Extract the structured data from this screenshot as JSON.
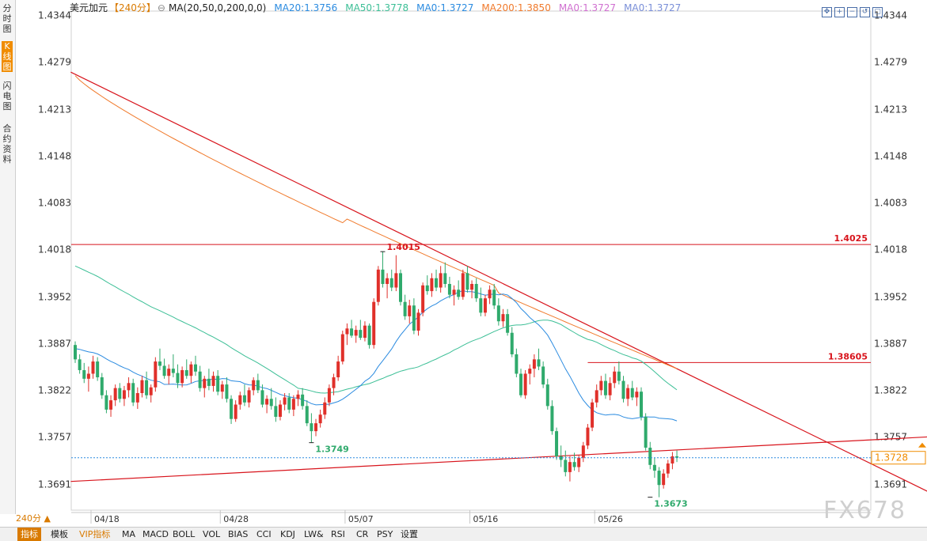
{
  "left_tabs": [
    "分时图",
    "K线图",
    "闪电图",
    "合约资料"
  ],
  "legend": {
    "symbol": "美元加元",
    "period": "【240分】",
    "ma_params": "MA(20,50,0,200,0,0)",
    "ma20": "MA20:1.3756",
    "ma50": "MA50:1.3778",
    "ma0a": "MA0:1.3727",
    "ma200": "MA200:1.3850",
    "ma0b": "MA0:1.3727",
    "ma0c": "MA0:1.3727"
  },
  "colors": {
    "up": "#e0302a",
    "down": "#2faa6c",
    "ma20": "#2b8be0",
    "ma50": "#3cbf96",
    "ma200": "#f07a2c",
    "trend": "#d8141c",
    "current_price": "#2b8be0"
  },
  "chart_data": {
    "type": "candlestick",
    "symbol": "USDCAD",
    "timeframe": "240分",
    "ylim": [
      1.3655,
      1.435
    ],
    "y_ticks": [
      "1.4344",
      "1.4279",
      "1.4213",
      "1.4148",
      "1.4083",
      "1.4018",
      "1.3952",
      "1.3887",
      "1.3822",
      "1.3757",
      "1.3691"
    ],
    "x_ticks": [
      {
        "label": "04/18",
        "i": 0
      },
      {
        "label": "04/28",
        "i": 29
      },
      {
        "label": "05/07",
        "i": 57
      },
      {
        "label": "05/16",
        "i": 85
      },
      {
        "label": "05/26",
        "i": 113
      }
    ],
    "candles": [
      [
        1.3885,
        1.389,
        1.386,
        1.3865
      ],
      [
        1.3865,
        1.3872,
        1.3845,
        1.385
      ],
      [
        1.385,
        1.386,
        1.3832,
        1.3838
      ],
      [
        1.3838,
        1.3855,
        1.382,
        1.3845
      ],
      [
        1.3845,
        1.387,
        1.3838,
        1.3862
      ],
      [
        1.3862,
        1.3868,
        1.3835,
        1.384
      ],
      [
        1.384,
        1.3846,
        1.381,
        1.3815
      ],
      [
        1.3815,
        1.3822,
        1.379,
        1.3795
      ],
      [
        1.3795,
        1.3815,
        1.3785,
        1.3808
      ],
      [
        1.3808,
        1.383,
        1.38,
        1.3825
      ],
      [
        1.3825,
        1.3832,
        1.3805,
        1.381
      ],
      [
        1.381,
        1.3828,
        1.38,
        1.3822
      ],
      [
        1.3822,
        1.384,
        1.3812,
        1.3832
      ],
      [
        1.3832,
        1.3838,
        1.38,
        1.3805
      ],
      [
        1.3805,
        1.3826,
        1.3796,
        1.3818
      ],
      [
        1.3818,
        1.3842,
        1.3812,
        1.3836
      ],
      [
        1.3836,
        1.3848,
        1.381,
        1.3815
      ],
      [
        1.3815,
        1.383,
        1.3805,
        1.3826
      ],
      [
        1.3826,
        1.3868,
        1.382,
        1.3862
      ],
      [
        1.3862,
        1.388,
        1.385,
        1.3856
      ],
      [
        1.3856,
        1.3866,
        1.3838,
        1.3842
      ],
      [
        1.3842,
        1.3858,
        1.383,
        1.3852
      ],
      [
        1.3852,
        1.3872,
        1.384,
        1.3846
      ],
      [
        1.3846,
        1.3858,
        1.3825,
        1.3832
      ],
      [
        1.3832,
        1.3855,
        1.3826,
        1.385
      ],
      [
        1.385,
        1.3865,
        1.3838,
        1.3842
      ],
      [
        1.3842,
        1.3862,
        1.3832,
        1.3858
      ],
      [
        1.3858,
        1.387,
        1.3842,
        1.3848
      ],
      [
        1.3848,
        1.3856,
        1.382,
        1.3825
      ],
      [
        1.3825,
        1.3842,
        1.3812,
        1.3838
      ],
      [
        1.3838,
        1.3852,
        1.3822,
        1.3828
      ],
      [
        1.3828,
        1.3848,
        1.382,
        1.3842
      ],
      [
        1.3842,
        1.385,
        1.3815,
        1.382
      ],
      [
        1.382,
        1.3835,
        1.381,
        1.383
      ],
      [
        1.383,
        1.384,
        1.3805,
        1.381
      ],
      [
        1.381,
        1.3815,
        1.3775,
        1.3782
      ],
      [
        1.3782,
        1.3808,
        1.3778,
        1.3802
      ],
      [
        1.3802,
        1.382,
        1.3795,
        1.3815
      ],
      [
        1.3815,
        1.383,
        1.38,
        1.3805
      ],
      [
        1.3805,
        1.3826,
        1.3798,
        1.3822
      ],
      [
        1.3822,
        1.384,
        1.3815,
        1.3836
      ],
      [
        1.3836,
        1.3845,
        1.3818,
        1.3822
      ],
      [
        1.3822,
        1.383,
        1.3798,
        1.3802
      ],
      [
        1.3802,
        1.3815,
        1.379,
        1.381
      ],
      [
        1.381,
        1.3825,
        1.3795,
        1.38
      ],
      [
        1.38,
        1.3812,
        1.3778,
        1.3785
      ],
      [
        1.3785,
        1.3808,
        1.378,
        1.3802
      ],
      [
        1.3802,
        1.3818,
        1.3794,
        1.3812
      ],
      [
        1.3812,
        1.3818,
        1.379,
        1.3795
      ],
      [
        1.3795,
        1.3815,
        1.3786,
        1.381
      ],
      [
        1.381,
        1.3822,
        1.38,
        1.3816
      ],
      [
        1.3816,
        1.3825,
        1.3795,
        1.38
      ],
      [
        1.38,
        1.3808,
        1.3772,
        1.3776
      ],
      [
        1.3776,
        1.379,
        1.3749,
        1.3765
      ],
      [
        1.3765,
        1.3782,
        1.3758,
        1.3776
      ],
      [
        1.3776,
        1.3795,
        1.377,
        1.3788
      ],
      [
        1.3788,
        1.3812,
        1.3782,
        1.3805
      ],
      [
        1.3805,
        1.383,
        1.38,
        1.3825
      ],
      [
        1.3825,
        1.3845,
        1.3815,
        1.384
      ],
      [
        1.384,
        1.387,
        1.3835,
        1.3862
      ],
      [
        1.3862,
        1.3905,
        1.3858,
        1.39
      ],
      [
        1.39,
        1.3915,
        1.3885,
        1.3908
      ],
      [
        1.3908,
        1.392,
        1.3895,
        1.3898
      ],
      [
        1.3898,
        1.3912,
        1.3888,
        1.3906
      ],
      [
        1.3906,
        1.392,
        1.3892,
        1.3895
      ],
      [
        1.3895,
        1.3918,
        1.389,
        1.3912
      ],
      [
        1.3912,
        1.3915,
        1.388,
        1.3885
      ],
      [
        1.3885,
        1.395,
        1.388,
        1.3945
      ],
      [
        1.3945,
        1.3995,
        1.394,
        1.399
      ],
      [
        1.399,
        1.4015,
        1.3965,
        1.397
      ],
      [
        1.397,
        1.3985,
        1.395,
        1.3978
      ],
      [
        1.3978,
        1.399,
        1.396,
        1.3965
      ],
      [
        1.3965,
        1.401,
        1.396,
        1.3985
      ],
      [
        1.3985,
        1.399,
        1.394,
        1.3945
      ],
      [
        1.3945,
        1.3955,
        1.392,
        1.3925
      ],
      [
        1.3925,
        1.3948,
        1.3915,
        1.394
      ],
      [
        1.394,
        1.395,
        1.39,
        1.3905
      ],
      [
        1.3905,
        1.3935,
        1.3898,
        1.393
      ],
      [
        1.393,
        1.3972,
        1.3925,
        1.3968
      ],
      [
        1.3968,
        1.3982,
        1.3955,
        1.396
      ],
      [
        1.396,
        1.3985,
        1.3952,
        1.3978
      ],
      [
        1.3978,
        1.399,
        1.396,
        1.3965
      ],
      [
        1.3965,
        1.3995,
        1.3958,
        1.3985
      ],
      [
        1.3985,
        1.4,
        1.3965,
        1.397
      ],
      [
        1.397,
        1.398,
        1.395,
        1.3955
      ],
      [
        1.3955,
        1.3968,
        1.394,
        1.3962
      ],
      [
        1.3962,
        1.3975,
        1.3948,
        1.3952
      ],
      [
        1.3952,
        1.399,
        1.3948,
        1.3985
      ],
      [
        1.3985,
        1.3995,
        1.3958,
        1.3962
      ],
      [
        1.3962,
        1.3975,
        1.395,
        1.397
      ],
      [
        1.397,
        1.3978,
        1.3945,
        1.395
      ],
      [
        1.395,
        1.3965,
        1.3925,
        1.393
      ],
      [
        1.393,
        1.3955,
        1.3925,
        1.395
      ],
      [
        1.395,
        1.3968,
        1.3942,
        1.3962
      ],
      [
        1.3962,
        1.397,
        1.3935,
        1.394
      ],
      [
        1.394,
        1.395,
        1.3912,
        1.3918
      ],
      [
        1.3918,
        1.3935,
        1.391,
        1.3928
      ],
      [
        1.3928,
        1.3935,
        1.3898,
        1.3902
      ],
      [
        1.3902,
        1.391,
        1.3868,
        1.3872
      ],
      [
        1.3872,
        1.388,
        1.384,
        1.3845
      ],
      [
        1.3845,
        1.3852,
        1.3812,
        1.3815
      ],
      [
        1.3815,
        1.385,
        1.381,
        1.3845
      ],
      [
        1.3845,
        1.3858,
        1.383,
        1.3852
      ],
      [
        1.3852,
        1.3872,
        1.384,
        1.3865
      ],
      [
        1.3865,
        1.388,
        1.385,
        1.3855
      ],
      [
        1.3855,
        1.3862,
        1.3825,
        1.383
      ],
      [
        1.383,
        1.3838,
        1.3795,
        1.38
      ],
      [
        1.38,
        1.3808,
        1.376,
        1.3765
      ],
      [
        1.3765,
        1.377,
        1.3725,
        1.373
      ],
      [
        1.373,
        1.3745,
        1.3715,
        1.3725
      ],
      [
        1.3725,
        1.3738,
        1.3702,
        1.3708
      ],
      [
        1.3708,
        1.373,
        1.3695,
        1.3722
      ],
      [
        1.3722,
        1.3735,
        1.371,
        1.3715
      ],
      [
        1.3715,
        1.3732,
        1.3708,
        1.3728
      ],
      [
        1.3728,
        1.375,
        1.3722,
        1.3745
      ],
      [
        1.3745,
        1.3775,
        1.374,
        1.377
      ],
      [
        1.377,
        1.381,
        1.3765,
        1.3805
      ],
      [
        1.3805,
        1.383,
        1.3798,
        1.3822
      ],
      [
        1.3822,
        1.3842,
        1.3815,
        1.3835
      ],
      [
        1.3835,
        1.3845,
        1.381,
        1.3815
      ],
      [
        1.3815,
        1.384,
        1.3808,
        1.3832
      ],
      [
        1.3832,
        1.3855,
        1.3825,
        1.3848
      ],
      [
        1.3848,
        1.3862,
        1.383,
        1.3835
      ],
      [
        1.3835,
        1.3842,
        1.3805,
        1.381
      ],
      [
        1.381,
        1.383,
        1.38,
        1.3825
      ],
      [
        1.3825,
        1.3835,
        1.3808,
        1.3812
      ],
      [
        1.3812,
        1.3826,
        1.38,
        1.382
      ],
      [
        1.382,
        1.3826,
        1.378,
        1.3785
      ],
      [
        1.3785,
        1.379,
        1.3738,
        1.3742
      ],
      [
        1.3742,
        1.375,
        1.3712,
        1.3718
      ],
      [
        1.3718,
        1.3728,
        1.37,
        1.371
      ],
      [
        1.371,
        1.3715,
        1.3673,
        1.369
      ],
      [
        1.369,
        1.3712,
        1.3685,
        1.3706
      ],
      [
        1.3706,
        1.3725,
        1.37,
        1.372
      ],
      [
        1.372,
        1.3736,
        1.3712,
        1.373
      ],
      [
        1.373,
        1.3738,
        1.3722,
        1.3728
      ]
    ],
    "levels": [
      {
        "label": "1.4025",
        "value": 1.4025
      },
      {
        "label": "1.38605",
        "value": 1.38605,
        "from_i": 115
      }
    ],
    "trendlines": [
      {
        "name": "descending",
        "p1": [
          -1,
          1.4265
        ],
        "p2": [
          135,
          1.3695
        ]
      },
      {
        "name": "ascending",
        "p1": [
          -1,
          1.3695
        ],
        "p2": [
          135,
          1.3755
        ]
      }
    ],
    "annotations": [
      {
        "label": "1.4015",
        "i": 69,
        "value": 1.4015,
        "type": "high"
      },
      {
        "label": "1.3749",
        "i": 53,
        "value": 1.3749,
        "type": "low"
      },
      {
        "label": "1.3673",
        "i": 129,
        "value": 1.3673,
        "type": "low"
      }
    ],
    "current_price": "1.3728"
  },
  "period_selector": "240分",
  "bottom_tabs": [
    "指标",
    "模板",
    "VIP指标",
    "MA",
    "MACD",
    "BOLL",
    "VOL",
    "BIAS",
    "CCI",
    "KDJ",
    "LW&",
    "RSI",
    "CR",
    "PSY",
    "设置"
  ],
  "watermark": "FX678"
}
